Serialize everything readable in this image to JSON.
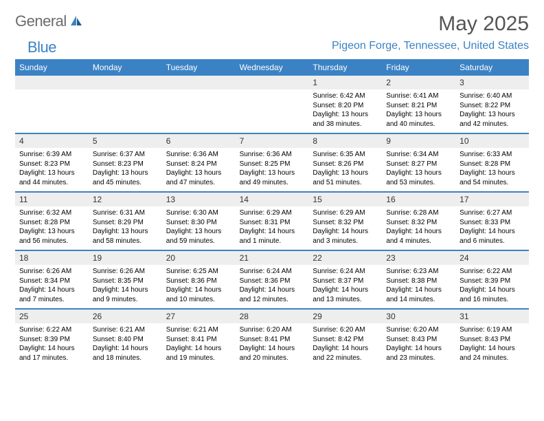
{
  "logo": {
    "general": "General",
    "blue": "Blue"
  },
  "title": "May 2025",
  "location": "Pigeon Forge, Tennessee, United States",
  "weekdays": [
    "Sunday",
    "Monday",
    "Tuesday",
    "Wednesday",
    "Thursday",
    "Friday",
    "Saturday"
  ],
  "colors": {
    "accent": "#3b82c4",
    "headerBg": "#3b82c4",
    "dayBg": "#eeeeee"
  },
  "weeks": [
    {
      "nums": [
        "",
        "",
        "",
        "",
        "1",
        "2",
        "3"
      ],
      "cells": [
        {},
        {},
        {},
        {},
        {
          "sunrise": "Sunrise: 6:42 AM",
          "sunset": "Sunset: 8:20 PM",
          "day1": "Daylight: 13 hours",
          "day2": "and 38 minutes."
        },
        {
          "sunrise": "Sunrise: 6:41 AM",
          "sunset": "Sunset: 8:21 PM",
          "day1": "Daylight: 13 hours",
          "day2": "and 40 minutes."
        },
        {
          "sunrise": "Sunrise: 6:40 AM",
          "sunset": "Sunset: 8:22 PM",
          "day1": "Daylight: 13 hours",
          "day2": "and 42 minutes."
        }
      ]
    },
    {
      "nums": [
        "4",
        "5",
        "6",
        "7",
        "8",
        "9",
        "10"
      ],
      "cells": [
        {
          "sunrise": "Sunrise: 6:39 AM",
          "sunset": "Sunset: 8:23 PM",
          "day1": "Daylight: 13 hours",
          "day2": "and 44 minutes."
        },
        {
          "sunrise": "Sunrise: 6:37 AM",
          "sunset": "Sunset: 8:23 PM",
          "day1": "Daylight: 13 hours",
          "day2": "and 45 minutes."
        },
        {
          "sunrise": "Sunrise: 6:36 AM",
          "sunset": "Sunset: 8:24 PM",
          "day1": "Daylight: 13 hours",
          "day2": "and 47 minutes."
        },
        {
          "sunrise": "Sunrise: 6:36 AM",
          "sunset": "Sunset: 8:25 PM",
          "day1": "Daylight: 13 hours",
          "day2": "and 49 minutes."
        },
        {
          "sunrise": "Sunrise: 6:35 AM",
          "sunset": "Sunset: 8:26 PM",
          "day1": "Daylight: 13 hours",
          "day2": "and 51 minutes."
        },
        {
          "sunrise": "Sunrise: 6:34 AM",
          "sunset": "Sunset: 8:27 PM",
          "day1": "Daylight: 13 hours",
          "day2": "and 53 minutes."
        },
        {
          "sunrise": "Sunrise: 6:33 AM",
          "sunset": "Sunset: 8:28 PM",
          "day1": "Daylight: 13 hours",
          "day2": "and 54 minutes."
        }
      ]
    },
    {
      "nums": [
        "11",
        "12",
        "13",
        "14",
        "15",
        "16",
        "17"
      ],
      "cells": [
        {
          "sunrise": "Sunrise: 6:32 AM",
          "sunset": "Sunset: 8:28 PM",
          "day1": "Daylight: 13 hours",
          "day2": "and 56 minutes."
        },
        {
          "sunrise": "Sunrise: 6:31 AM",
          "sunset": "Sunset: 8:29 PM",
          "day1": "Daylight: 13 hours",
          "day2": "and 58 minutes."
        },
        {
          "sunrise": "Sunrise: 6:30 AM",
          "sunset": "Sunset: 8:30 PM",
          "day1": "Daylight: 13 hours",
          "day2": "and 59 minutes."
        },
        {
          "sunrise": "Sunrise: 6:29 AM",
          "sunset": "Sunset: 8:31 PM",
          "day1": "Daylight: 14 hours",
          "day2": "and 1 minute."
        },
        {
          "sunrise": "Sunrise: 6:29 AM",
          "sunset": "Sunset: 8:32 PM",
          "day1": "Daylight: 14 hours",
          "day2": "and 3 minutes."
        },
        {
          "sunrise": "Sunrise: 6:28 AM",
          "sunset": "Sunset: 8:32 PM",
          "day1": "Daylight: 14 hours",
          "day2": "and 4 minutes."
        },
        {
          "sunrise": "Sunrise: 6:27 AM",
          "sunset": "Sunset: 8:33 PM",
          "day1": "Daylight: 14 hours",
          "day2": "and 6 minutes."
        }
      ]
    },
    {
      "nums": [
        "18",
        "19",
        "20",
        "21",
        "22",
        "23",
        "24"
      ],
      "cells": [
        {
          "sunrise": "Sunrise: 6:26 AM",
          "sunset": "Sunset: 8:34 PM",
          "day1": "Daylight: 14 hours",
          "day2": "and 7 minutes."
        },
        {
          "sunrise": "Sunrise: 6:26 AM",
          "sunset": "Sunset: 8:35 PM",
          "day1": "Daylight: 14 hours",
          "day2": "and 9 minutes."
        },
        {
          "sunrise": "Sunrise: 6:25 AM",
          "sunset": "Sunset: 8:36 PM",
          "day1": "Daylight: 14 hours",
          "day2": "and 10 minutes."
        },
        {
          "sunrise": "Sunrise: 6:24 AM",
          "sunset": "Sunset: 8:36 PM",
          "day1": "Daylight: 14 hours",
          "day2": "and 12 minutes."
        },
        {
          "sunrise": "Sunrise: 6:24 AM",
          "sunset": "Sunset: 8:37 PM",
          "day1": "Daylight: 14 hours",
          "day2": "and 13 minutes."
        },
        {
          "sunrise": "Sunrise: 6:23 AM",
          "sunset": "Sunset: 8:38 PM",
          "day1": "Daylight: 14 hours",
          "day2": "and 14 minutes."
        },
        {
          "sunrise": "Sunrise: 6:22 AM",
          "sunset": "Sunset: 8:39 PM",
          "day1": "Daylight: 14 hours",
          "day2": "and 16 minutes."
        }
      ]
    },
    {
      "nums": [
        "25",
        "26",
        "27",
        "28",
        "29",
        "30",
        "31"
      ],
      "cells": [
        {
          "sunrise": "Sunrise: 6:22 AM",
          "sunset": "Sunset: 8:39 PM",
          "day1": "Daylight: 14 hours",
          "day2": "and 17 minutes."
        },
        {
          "sunrise": "Sunrise: 6:21 AM",
          "sunset": "Sunset: 8:40 PM",
          "day1": "Daylight: 14 hours",
          "day2": "and 18 minutes."
        },
        {
          "sunrise": "Sunrise: 6:21 AM",
          "sunset": "Sunset: 8:41 PM",
          "day1": "Daylight: 14 hours",
          "day2": "and 19 minutes."
        },
        {
          "sunrise": "Sunrise: 6:20 AM",
          "sunset": "Sunset: 8:41 PM",
          "day1": "Daylight: 14 hours",
          "day2": "and 20 minutes."
        },
        {
          "sunrise": "Sunrise: 6:20 AM",
          "sunset": "Sunset: 8:42 PM",
          "day1": "Daylight: 14 hours",
          "day2": "and 22 minutes."
        },
        {
          "sunrise": "Sunrise: 6:20 AM",
          "sunset": "Sunset: 8:43 PM",
          "day1": "Daylight: 14 hours",
          "day2": "and 23 minutes."
        },
        {
          "sunrise": "Sunrise: 6:19 AM",
          "sunset": "Sunset: 8:43 PM",
          "day1": "Daylight: 14 hours",
          "day2": "and 24 minutes."
        }
      ]
    }
  ]
}
